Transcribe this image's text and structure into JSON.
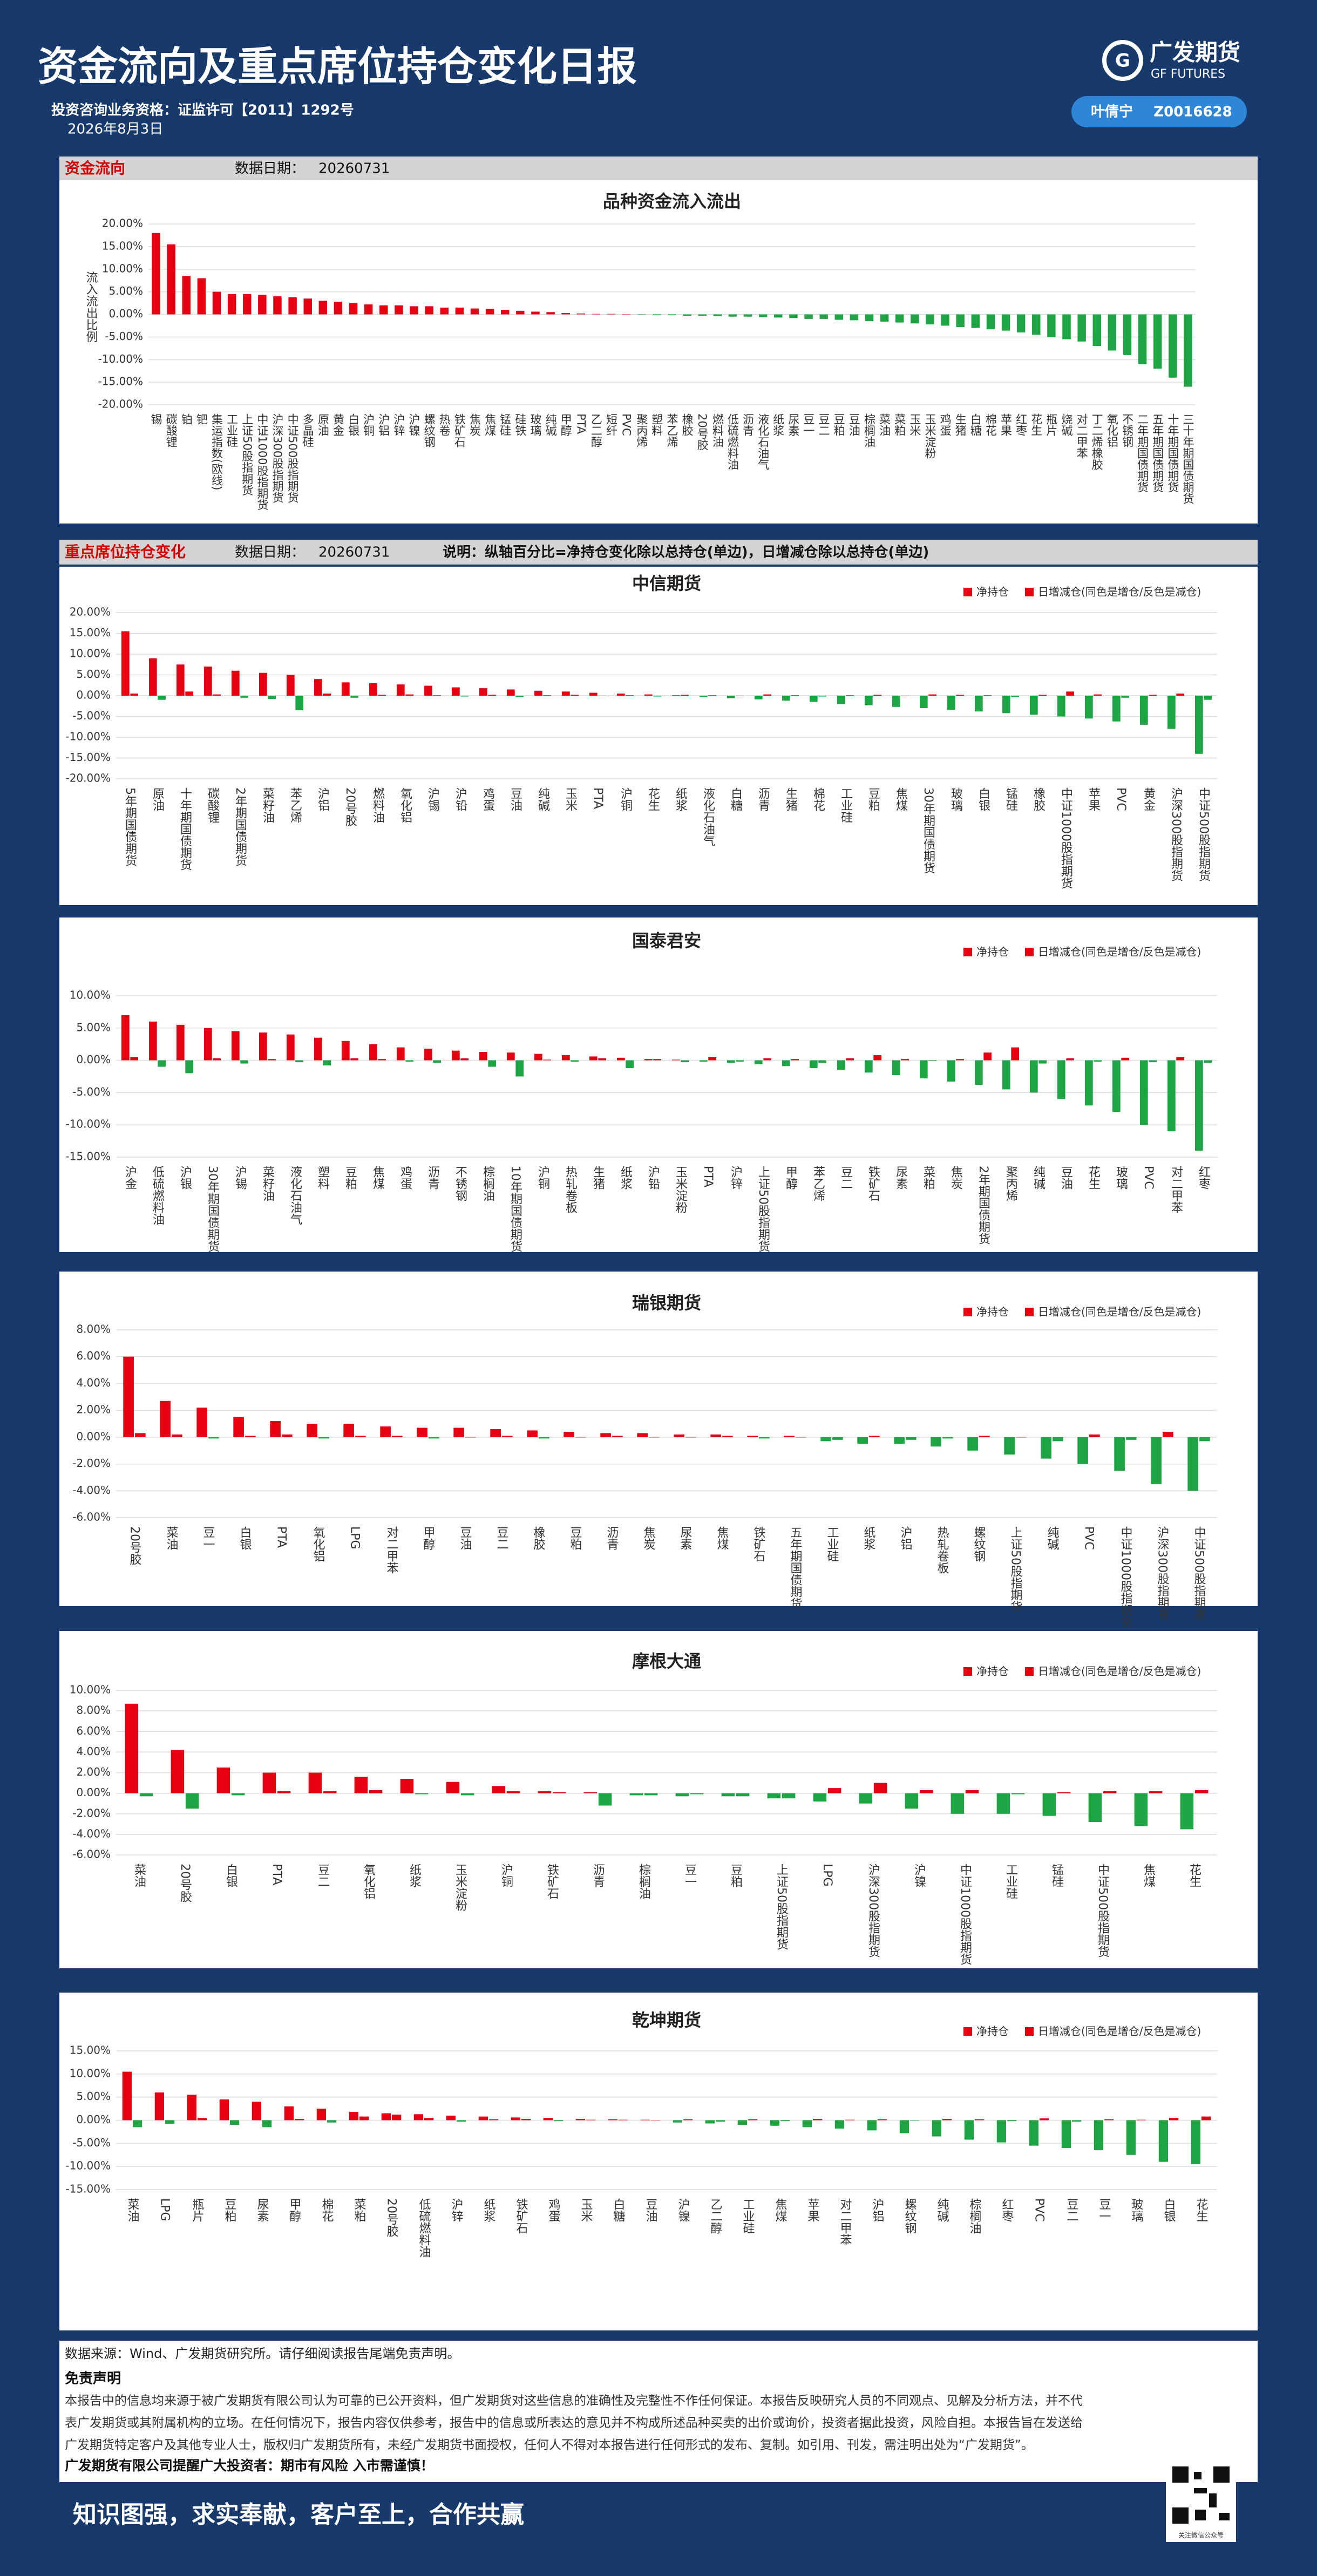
{
  "header": {
    "title": "资金流向及重点席位持仓变化日报",
    "license": "投资咨询业务资格：证监许可【2011】1292号",
    "date": "2026年8月3日",
    "logo_cn": "广发期货",
    "logo_en": "GF FUTURES",
    "analyst": "叶倩宁",
    "analyst_id": "Z0016628"
  },
  "sections": [
    {
      "label": "资金流向",
      "date_label": "数据日期：",
      "date": "20260731"
    },
    {
      "label": "重点席位持仓变化",
      "date_label": "数据日期：",
      "date": "20260731",
      "note": "说明：纵轴百分比=净持仓变化除以总持仓(单边)，日增减仓除以总持仓(单边)"
    }
  ],
  "chart_data": [
    {
      "type": "bar",
      "title": "品种资金流入流出",
      "y_label": "流入流出比例",
      "color": "#e60012",
      "negative_color": "#1fa444",
      "grid": true,
      "categories": [
        "锡",
        "碳酸锂",
        "铂",
        "钯",
        "集运指数(欧线)",
        "工业硅",
        "上证50股指期货",
        "中证1000股指期货",
        "沪深300股指期货",
        "中证500股指期货",
        "多晶硅",
        "原油",
        "黄金",
        "白银",
        "沪铜",
        "沪铝",
        "沪锌",
        "沪镍",
        "螺纹钢",
        "热卷",
        "铁矿石",
        "焦炭",
        "焦煤",
        "锰硅",
        "硅铁",
        "玻璃",
        "纯碱",
        "甲醇",
        "PTA",
        "乙二醇",
        "短纤",
        "PVC",
        "聚丙烯",
        "塑料",
        "苯乙烯",
        "橡胶",
        "20号胶",
        "燃料油",
        "低硫燃料油",
        "沥青",
        "液化石油气",
        "纸浆",
        "尿素",
        "豆一",
        "豆二",
        "豆粕",
        "豆油",
        "棕榈油",
        "菜油",
        "菜粕",
        "玉米",
        "玉米淀粉",
        "鸡蛋",
        "生猪",
        "白糖",
        "棉花",
        "苹果",
        "红枣",
        "花生",
        "瓶片",
        "烧碱",
        "对二甲苯",
        "丁二烯橡胶",
        "氧化铝",
        "不锈钢",
        "二年期国债期货",
        "五年期国债期货",
        "十年期国债期货",
        "三十年期国债期货"
      ],
      "values": [
        18,
        15.5,
        8.5,
        8,
        5,
        4.5,
        4.5,
        4.3,
        4,
        3.8,
        3.5,
        3,
        2.8,
        2.5,
        2.2,
        2,
        2,
        1.8,
        1.8,
        1.5,
        1.5,
        1.3,
        1.2,
        1,
        0.8,
        0.6,
        0.5,
        0.3,
        0.2,
        0.1,
        0.1,
        0,
        -0.1,
        -0.2,
        -0.2,
        -0.3,
        -0.3,
        -0.4,
        -0.5,
        -0.5,
        -0.6,
        -0.7,
        -0.8,
        -1,
        -1,
        -1.2,
        -1.3,
        -1.5,
        -1.6,
        -1.8,
        -2,
        -2.2,
        -2.5,
        -2.8,
        -3,
        -3.3,
        -3.6,
        -4,
        -4.5,
        -5,
        -5.5,
        -6,
        -7,
        -8,
        -9,
        -11,
        -12,
        -14,
        -16
      ],
      "ylim": [
        -20,
        20
      ],
      "yticks": [
        {
          "value": -20,
          "label": "-20.00%"
        },
        {
          "value": -15,
          "label": "-15.00%"
        },
        {
          "value": -10,
          "label": "-10.00%"
        },
        {
          "value": -5,
          "label": "-5.00%"
        },
        {
          "value": 0,
          "label": "0.00%"
        },
        {
          "value": 5,
          "label": "5.00%"
        },
        {
          "value": 10,
          "label": "10.00%"
        },
        {
          "value": 15,
          "label": "15.00%"
        },
        {
          "value": 20,
          "label": "20.00%"
        }
      ]
    },
    {
      "type": "bar",
      "title": "中信期货",
      "legend": "top-right",
      "grid": true,
      "categories": [
        "5年期国债期货",
        "原油",
        "十年期国债期货",
        "碳酸锂",
        "2年期国债期货",
        "菜籽油",
        "苯乙烯",
        "沪铝",
        "20号胶",
        "燃料油",
        "氧化铝",
        "沪锡",
        "沪铅",
        "鸡蛋",
        "豆油",
        "纯碱",
        "玉米",
        "PTA",
        "沪铜",
        "花生",
        "纸浆",
        "液化石油气",
        "白糖",
        "沥青",
        "生猪",
        "棉花",
        "工业硅",
        "豆粕",
        "焦煤",
        "30年期国债期货",
        "玻璃",
        "白银",
        "锰硅",
        "橡胶",
        "中证1000股指期货",
        "苹果",
        "PVC",
        "黄金",
        "沪深300股指期货",
        "中证500股指期货"
      ],
      "series": [
        {
          "name": "净持仓",
          "color": "#e60012",
          "negative_color": "#1fa444",
          "values": [
            15.5,
            9,
            7.5,
            7,
            6,
            5.5,
            5,
            4,
            3.2,
            3,
            2.7,
            2.4,
            2,
            1.8,
            1.5,
            1.2,
            1,
            0.7,
            0.5,
            0.3,
            0.1,
            -0.3,
            -0.6,
            -0.9,
            -1.2,
            -1.5,
            -2,
            -2.3,
            -2.7,
            -3,
            -3.4,
            -3.8,
            -4.2,
            -4.6,
            -5,
            -5.5,
            -6.2,
            -7,
            -8,
            -14
          ]
        },
        {
          "name": "日增减仓(同色是增仓/反色是减仓)",
          "color": "#e60012",
          "negative_color": "#1fa444",
          "values": [
            0.5,
            -1,
            1,
            0.3,
            -0.5,
            -0.8,
            -3.5,
            0.5,
            -0.5,
            0.2,
            0.3,
            0.1,
            -0.2,
            0.2,
            -0.3,
            0.1,
            0.2,
            -0.1,
            0.1,
            -0.2,
            0.2,
            0.1,
            -0.1,
            0.3,
            0.1,
            -0.2,
            0.1,
            0.2,
            -0.1,
            0.3,
            0.2,
            0.1,
            -0.3,
            0.2,
            1,
            0.3,
            -0.5,
            0.2,
            0.5,
            -1
          ]
        }
      ],
      "ylim": [
        -20,
        20
      ],
      "yticks": [
        {
          "value": -20,
          "label": "-20.00%"
        },
        {
          "value": -15,
          "label": "-15.00%"
        },
        {
          "value": -10,
          "label": "-10.00%"
        },
        {
          "value": -5,
          "label": "-5.00%"
        },
        {
          "value": 0,
          "label": "0.00%"
        },
        {
          "value": 5,
          "label": "5.00%"
        },
        {
          "value": 10,
          "label": "10.00%"
        },
        {
          "value": 15,
          "label": "15.00%"
        },
        {
          "value": 20,
          "label": "20.00%"
        }
      ]
    },
    {
      "type": "bar",
      "title": "国泰君安",
      "legend": "top-right",
      "grid": true,
      "categories": [
        "沪金",
        "低硫燃料油",
        "沪银",
        "30年期国债期货",
        "沪锡",
        "菜籽油",
        "液化石油气",
        "塑料",
        "豆粕",
        "焦煤",
        "鸡蛋",
        "沥青",
        "不锈钢",
        "棕榈油",
        "10年期国债期货",
        "沪铜",
        "热轧卷板",
        "生猪",
        "纸浆",
        "沪铅",
        "玉米淀粉",
        "PTA",
        "沪锌",
        "上证50股指期货",
        "甲醇",
        "苯乙烯",
        "豆二",
        "铁矿石",
        "尿素",
        "菜粕",
        "焦炭",
        "2年期国债期货",
        "聚丙烯",
        "纯碱",
        "豆油",
        "花生",
        "玻璃",
        "PVC",
        "对二甲苯",
        "红枣"
      ],
      "series": [
        {
          "name": "净持仓",
          "color": "#e60012",
          "negative_color": "#1fa444",
          "values": [
            7,
            6,
            5.5,
            5,
            4.5,
            4.3,
            4,
            3.5,
            3,
            2.5,
            2,
            1.8,
            1.5,
            1.3,
            1.2,
            1,
            0.8,
            0.6,
            0.4,
            0.2,
            0.1,
            -0.2,
            -0.4,
            -0.6,
            -0.9,
            -1.2,
            -1.5,
            -1.9,
            -2.3,
            -2.8,
            -3.3,
            -3.8,
            -4.5,
            -5,
            -6,
            -7,
            -8,
            -10,
            -11,
            -14
          ]
        },
        {
          "name": "日增减仓(同色是增仓/反色是减仓)",
          "color": "#e60012",
          "negative_color": "#1fa444",
          "values": [
            0.5,
            -1,
            -2,
            0.3,
            -0.5,
            0.2,
            -0.3,
            -0.8,
            0.3,
            0.2,
            -0.2,
            -0.4,
            0.3,
            -1,
            -2.5,
            0.1,
            -0.2,
            0.3,
            -1.2,
            0.2,
            -0.3,
            0.5,
            -0.2,
            0.3,
            0.2,
            -0.4,
            0.3,
            0.8,
            0.2,
            -0.1,
            0.2,
            1.2,
            2,
            -0.5,
            0.3,
            -0.2,
            0.4,
            -0.3,
            0.5,
            -0.4
          ]
        }
      ],
      "ylim": [
        -15,
        10
      ],
      "yticks": [
        {
          "value": -15,
          "label": "-15.00%"
        },
        {
          "value": -10,
          "label": "-10.00%"
        },
        {
          "value": -5,
          "label": "-5.00%"
        },
        {
          "value": 0,
          "label": "0.00%"
        },
        {
          "value": 5,
          "label": "5.00%"
        },
        {
          "value": 10,
          "label": "10.00%"
        }
      ]
    },
    {
      "type": "bar",
      "title": "瑞银期货",
      "legend": "top-right",
      "grid": true,
      "categories": [
        "20号胶",
        "菜油",
        "豆一",
        "白银",
        "PTA",
        "氧化铝",
        "LPG",
        "对二甲苯",
        "甲醇",
        "豆油",
        "豆二",
        "橡胶",
        "豆粕",
        "沥青",
        "焦炭",
        "尿素",
        "焦煤",
        "铁矿石",
        "五年期国债期货",
        "工业硅",
        "纸浆",
        "沪铝",
        "热轧卷板",
        "螺纹钢",
        "上证50股指期货",
        "纯碱",
        "PVC",
        "中证1000股指期货",
        "沪深300股指期货",
        "中证500股指期货"
      ],
      "series": [
        {
          "name": "净持仓",
          "color": "#e60012",
          "negative_color": "#1fa444",
          "values": [
            6,
            2.7,
            2.2,
            1.5,
            1.2,
            1,
            1,
            0.8,
            0.7,
            0.7,
            0.6,
            0.5,
            0.4,
            0.3,
            0.3,
            0.2,
            0.2,
            0.1,
            0.1,
            -0.3,
            -0.5,
            -0.5,
            -0.7,
            -1,
            -1.3,
            -1.6,
            -2,
            -2.5,
            -3.5,
            -4
          ]
        },
        {
          "name": "日增减仓(同色是增仓/反色是减仓)",
          "color": "#e60012",
          "negative_color": "#1fa444",
          "values": [
            0.3,
            0.2,
            -0.1,
            0.1,
            0.2,
            -0.1,
            0.1,
            0.1,
            -0.1,
            0,
            0.1,
            -0.1,
            0,
            0.1,
            0,
            0,
            0.1,
            -0.1,
            0,
            -0.2,
            0.1,
            -0.2,
            -0.1,
            0.1,
            0,
            -0.3,
            0.2,
            -0.2,
            0.4,
            -0.3
          ]
        }
      ],
      "ylim": [
        -6,
        8
      ],
      "yticks": [
        {
          "value": -6,
          "label": "-6.00%"
        },
        {
          "value": -4,
          "label": "-4.00%"
        },
        {
          "value": -2,
          "label": "-2.00%"
        },
        {
          "value": 0,
          "label": "0.00%"
        },
        {
          "value": 2,
          "label": "2.00%"
        },
        {
          "value": 4,
          "label": "4.00%"
        },
        {
          "value": 6,
          "label": "6.00%"
        },
        {
          "value": 8,
          "label": "8.00%"
        }
      ]
    },
    {
      "type": "bar",
      "title": "摩根大通",
      "legend": "top-right",
      "grid": true,
      "categories": [
        "菜油",
        "20号胶",
        "白银",
        "PTA",
        "豆二",
        "氧化铝",
        "纸浆",
        "玉米淀粉",
        "沪铜",
        "铁矿石",
        "沥青",
        "棕榈油",
        "豆一",
        "豆粕",
        "上证50股指期货",
        "LPG",
        "沪深300股指期货",
        "沪镍",
        "中证1000股指期货",
        "工业硅",
        "锰硅",
        "中证500股指期货",
        "焦煤",
        "花生"
      ],
      "series": [
        {
          "name": "净持仓",
          "color": "#e60012",
          "negative_color": "#1fa444",
          "values": [
            8.7,
            4.2,
            2.5,
            2,
            2,
            1.6,
            1.4,
            1.1,
            0.7,
            0.2,
            0.1,
            -0.2,
            -0.3,
            -0.3,
            -0.5,
            -0.8,
            -1,
            -1.5,
            -2,
            -2,
            -2.2,
            -2.8,
            -3.2,
            -3.5
          ]
        },
        {
          "name": "日增减仓(同色是增仓/反色是减仓)",
          "color": "#e60012",
          "negative_color": "#1fa444",
          "values": [
            -0.3,
            -1.5,
            -0.2,
            0.2,
            0.2,
            0.3,
            -0.1,
            -0.2,
            0.2,
            0.1,
            -1.2,
            -0.2,
            -0.1,
            -0.3,
            -0.5,
            0.5,
            1,
            0.3,
            0.3,
            -0.1,
            0.1,
            0.2,
            0.2,
            0.3
          ]
        }
      ],
      "ylim": [
        -6,
        10
      ],
      "yticks": [
        {
          "value": -6,
          "label": "-6.00%"
        },
        {
          "value": -4,
          "label": "-4.00%"
        },
        {
          "value": -2,
          "label": "-2.00%"
        },
        {
          "value": 0,
          "label": "0.00%"
        },
        {
          "value": 2,
          "label": "2.00%"
        },
        {
          "value": 4,
          "label": "4.00%"
        },
        {
          "value": 6,
          "label": "6.00%"
        },
        {
          "value": 8,
          "label": "8.00%"
        },
        {
          "value": 10,
          "label": "10.00%"
        }
      ]
    },
    {
      "type": "bar",
      "title": "乾坤期货",
      "legend": "top-right",
      "grid": true,
      "categories": [
        "菜油",
        "LPG",
        "瓶片",
        "豆粕",
        "尿素",
        "甲醇",
        "棉花",
        "菜粕",
        "20号胶",
        "低硫燃料油",
        "沪锌",
        "纸浆",
        "铁矿石",
        "鸡蛋",
        "玉米",
        "白糖",
        "豆油",
        "沪镍",
        "乙二醇",
        "工业硅",
        "焦煤",
        "苹果",
        "对二甲苯",
        "沪铝",
        "螺纹钢",
        "纯碱",
        "棕榈油",
        "红枣",
        "PVC",
        "豆二",
        "豆一",
        "玻璃",
        "白银",
        "花生"
      ],
      "series": [
        {
          "name": "净持仓",
          "color": "#e60012",
          "negative_color": "#1fa444",
          "values": [
            10.5,
            6,
            5.5,
            4.5,
            4,
            3,
            2.5,
            1.8,
            1.5,
            1.3,
            1,
            0.8,
            0.6,
            0.5,
            0.3,
            0.2,
            0.1,
            -0.5,
            -0.7,
            -1,
            -1.2,
            -1.5,
            -1.8,
            -2.2,
            -2.8,
            -3.5,
            -4.2,
            -4.8,
            -5.5,
            -6,
            -6.5,
            -7.5,
            -9,
            -9.5
          ]
        },
        {
          "name": "日增减仓(同色是增仓/反色是减仓)",
          "color": "#e60012",
          "negative_color": "#1fa444",
          "values": [
            -1.5,
            -0.8,
            0.5,
            -1,
            -1.5,
            0.3,
            -0.5,
            0.8,
            1.2,
            0.5,
            -0.3,
            0.2,
            0.3,
            -0.2,
            0.1,
            0.1,
            0,
            0.2,
            -0.3,
            0.2,
            -0.2,
            0.3,
            0.1,
            0.2,
            -0.1,
            0.3,
            0.2,
            -0.2,
            0.4,
            -0.3,
            0.2,
            0.1,
            0.5,
            0.8
          ]
        }
      ],
      "ylim": [
        -15,
        15
      ],
      "yticks": [
        {
          "value": -15,
          "label": "-15.00%"
        },
        {
          "value": -10,
          "label": "-10.00%"
        },
        {
          "value": -5,
          "label": "-5.00%"
        },
        {
          "value": 0,
          "label": "0.00%"
        },
        {
          "value": 5,
          "label": "5.00%"
        },
        {
          "value": 10,
          "label": "10.00%"
        },
        {
          "value": 15,
          "label": "15.00%"
        }
      ]
    }
  ],
  "footer": {
    "source": "数据来源：Wind、广发期货研究所。请仔细阅读报告尾端免责声明。",
    "disclaimer_title": "免责声明",
    "disclaimer": [
      "本报告中的信息均来源于被广发期货有限公司认为可靠的已公开资料，但广发期货对这些信息的准确性及完整性不作任何保证。本报告反映研究人员的不同观点、见解及分析方法，并不代",
      "表广发期货或其附属机构的立场。在任何情况下，报告内容仅供参考，报告中的信息或所表达的意见并不构成所述品种买卖的出价或询价，投资者据此投资，风险自担。本报告旨在发送给",
      "广发期货特定客户及其他专业人士，版权归广发期货所有，未经广发期货书面授权，任何人不得对本报告进行任何形式的发布、复制。如引用、刊发，需注明出处为“广发期货”。"
    ],
    "notice": "广发期货有限公司提醒广大投资者：期市有风险 入市需谨慎！",
    "motto": "知识图强，求实奉献，客户至上，合作共赢",
    "qr_caption": "关注微信公众号"
  }
}
